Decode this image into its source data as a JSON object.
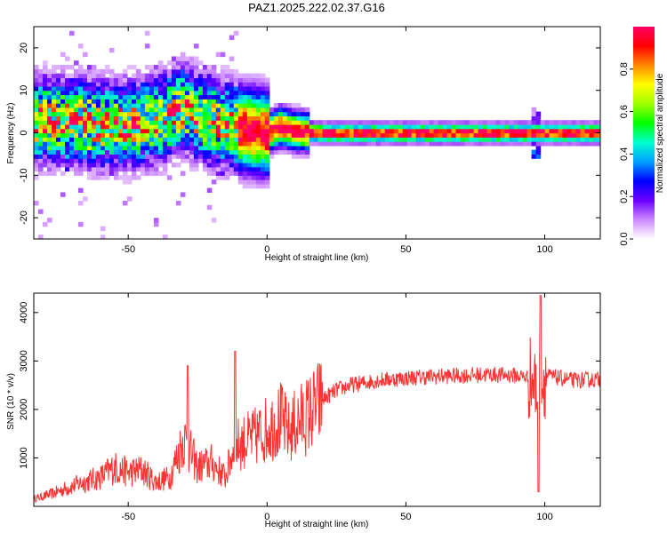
{
  "title": "PAZ1.2025.222.02.37.G16",
  "chart_data": [
    {
      "type": "heatmap",
      "xlabel": "Height of straight line (km)",
      "ylabel": "Frequency (Hz)",
      "xlim": [
        -84,
        120
      ],
      "ylim": [
        -25,
        25
      ],
      "xticks": [
        -50,
        0,
        50,
        100
      ],
      "yticks": [
        -20,
        -10,
        0,
        10,
        20
      ],
      "colorbar": {
        "label": "Normalized spectral amplitude",
        "range": [
          0,
          1
        ],
        "ticks": [
          "0.0",
          "0.2",
          "0.4",
          "0.6",
          "0.8"
        ],
        "colors": [
          "#ffffff",
          "#cc88ff",
          "#6a00ff",
          "#0000ff",
          "#00a0ff",
          "#00ffd0",
          "#00ff00",
          "#a0ff00",
          "#ffff00",
          "#ff8800",
          "#ff0000",
          "#ff0066"
        ]
      },
      "ridge": {
        "x": [
          -80,
          -70,
          -60,
          -50,
          -40,
          -30,
          -25,
          -20,
          -10,
          0,
          5,
          10,
          20,
          50,
          95,
          100,
          120
        ],
        "frequency": [
          3,
          3,
          2,
          2,
          3,
          6,
          4,
          3,
          1,
          0,
          1.5,
          0.5,
          0,
          0,
          0,
          0,
          0
        ]
      }
    },
    {
      "type": "line",
      "xlabel": "Height of straight line (km)",
      "ylabel": "SNR (10 * v/v)",
      "xlim": [
        -84,
        120
      ],
      "ylim": [
        0,
        4400
      ],
      "xticks": [
        -50,
        0,
        50,
        100
      ],
      "yticks": [
        1000,
        2000,
        3000,
        4000
      ],
      "line_color": "#ff3333",
      "series": [
        {
          "x": [
            -84,
            -78,
            -72,
            -66,
            -60,
            -55,
            -50,
            -45,
            -40,
            -35,
            -30,
            -25,
            -20,
            -15,
            -12,
            -10,
            -5,
            0,
            5,
            8,
            10,
            15,
            20,
            25,
            30,
            35,
            40,
            50,
            60,
            70,
            80,
            90,
            95,
            98,
            100,
            105,
            110,
            120
          ],
          "values": [
            150,
            250,
            380,
            500,
            600,
            800,
            700,
            750,
            500,
            600,
            1400,
            800,
            900,
            600,
            1200,
            1300,
            1400,
            1600,
            1800,
            1500,
            1700,
            1900,
            2200,
            2400,
            2500,
            2550,
            2600,
            2650,
            2680,
            2700,
            2720,
            2700,
            2650,
            2300,
            2700,
            2650,
            2600,
            2620
          ]
        }
      ]
    }
  ]
}
